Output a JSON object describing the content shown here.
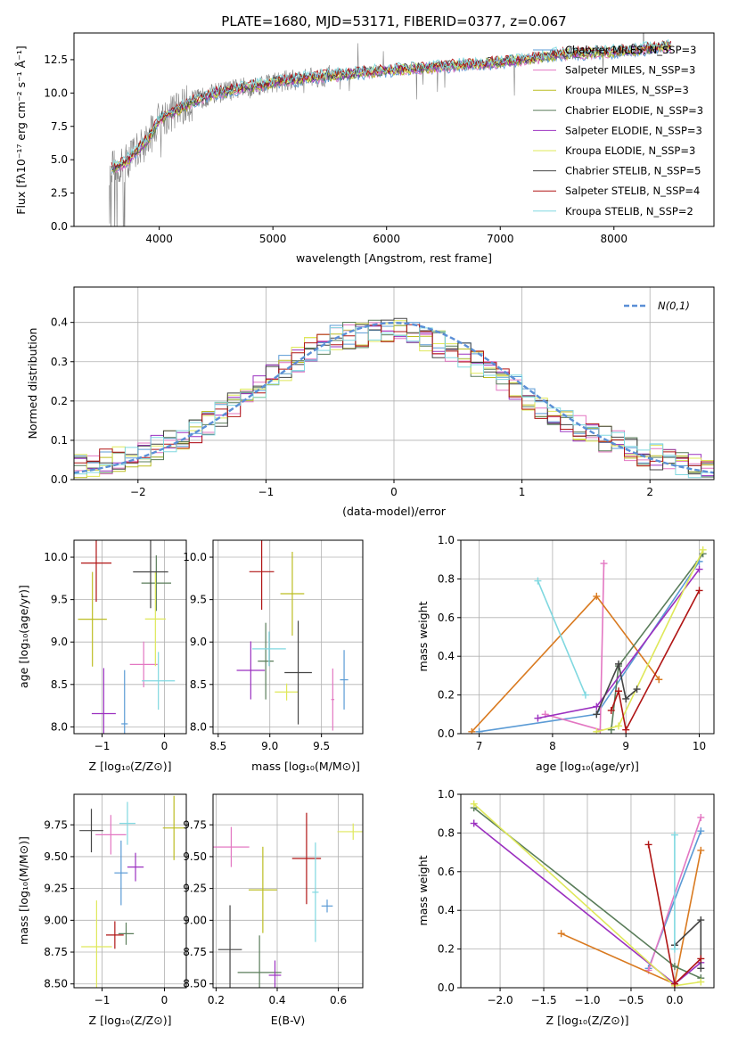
{
  "chart_data": [
    {
      "type": "line",
      "id": "spectrum",
      "title": "PLATE=1680, MJD=53171, FIBERID=0377, z=0.067",
      "xlabel": "wavelength [Angstrom, rest frame]",
      "ylabel": "Flux [fλ10⁻¹⁷ erg cm⁻² s⁻¹ Å⁻¹]",
      "xlim": [
        3250,
        8880
      ],
      "ylim": [
        0,
        14.5
      ],
      "xticks": [
        "4000",
        "5000",
        "6000",
        "7000",
        "8000"
      ],
      "yticks": [
        "0.0",
        "2.5",
        "5.0",
        "7.5",
        "10.0",
        "12.5"
      ],
      "observed_color": "#808080",
      "legend": [
        {
          "label": "Chabrier MILES, N_SSP=3",
          "color": "#5b9bd5"
        },
        {
          "label": "Salpeter MILES, N_SSP=3",
          "color": "#e377c2"
        },
        {
          "label": "Kroupa MILES, N_SSP=3",
          "color": "#bcbd22"
        },
        {
          "label": "Chabrier ELODIE, N_SSP=3",
          "color": "#5a7d5a"
        },
        {
          "label": "Salpeter ELODIE, N_SSP=3",
          "color": "#9b30c0"
        },
        {
          "label": "Kroupa ELODIE, N_SSP=3",
          "color": "#dfe85a"
        },
        {
          "label": "Chabrier STELIB, N_SSP=5",
          "color": "#444444"
        },
        {
          "label": "Salpeter STELIB, N_SSP=4",
          "color": "#b01515"
        },
        {
          "label": "Kroupa STELIB, N_SSP=2",
          "color": "#80d8e0"
        }
      ],
      "continuum": {
        "x": [
          3580,
          3700,
          3900,
          4000,
          4300,
          4500,
          5000,
          5500,
          6000,
          6500,
          7000,
          7300,
          7500,
          8000,
          8500
        ],
        "y": [
          4.3,
          4.8,
          6.5,
          8.0,
          9.4,
          10.0,
          10.8,
          11.3,
          11.7,
          12.0,
          12.3,
          12.6,
          12.9,
          13.1,
          13.5
        ]
      }
    },
    {
      "type": "line",
      "id": "residuals",
      "xlabel": "(data-model)/error",
      "ylabel": "Normed distribution",
      "xlim": [
        -2.5,
        2.5
      ],
      "ylim": [
        0,
        0.49
      ],
      "xticks": [
        "−2",
        "−1",
        "0",
        "1",
        "2"
      ],
      "yticks": [
        "0.0",
        "0.1",
        "0.2",
        "0.3",
        "0.4"
      ],
      "legend_label": "N(0,1)",
      "gaussian_color": "#5b8fd6",
      "bin_width": 0.1,
      "envelope": {
        "x": [
          -2.5,
          -2.0,
          -1.5,
          -1.0,
          -0.5,
          0.0,
          0.5,
          1.0,
          1.5,
          2.0,
          2.5
        ],
        "y": [
          0.03,
          0.06,
          0.13,
          0.25,
          0.36,
          0.38,
          0.33,
          0.22,
          0.12,
          0.06,
          0.025
        ]
      }
    },
    {
      "type": "scatter",
      "id": "age-vs-Z",
      "xlabel": "Z [log₁₀(Z/Z⊙)]",
      "ylabel": "age  [log₁₀(age/yr)]",
      "xlim": [
        -1.45,
        0.35
      ],
      "ylim": [
        7.92,
        10.2
      ],
      "xticks": [
        "−1",
        "0"
      ],
      "yticks": [
        "8.0",
        "8.5",
        "9.0",
        "9.5",
        "10.0"
      ]
    },
    {
      "type": "scatter",
      "id": "age-vs-mass",
      "xlabel": "mass [log₁₀(M/M⊙)]",
      "xlim": [
        8.45,
        9.9
      ],
      "ylim": [
        7.92,
        10.2
      ],
      "xticks": [
        "8.5",
        "9.0",
        "9.5"
      ],
      "yticks": [
        "8.0",
        "8.5",
        "9.0",
        "9.5",
        "10.0"
      ]
    },
    {
      "type": "line",
      "id": "weight-vs-age",
      "xlabel": "age  [log₁₀(age/yr)]",
      "ylabel": "mass weight",
      "xlim": [
        6.75,
        10.2
      ],
      "ylim": [
        0,
        1.0
      ],
      "xticks": [
        "7",
        "8",
        "9",
        "10"
      ],
      "yticks": [
        "0.0",
        "0.2",
        "0.4",
        "0.6",
        "0.8",
        "1.0"
      ],
      "series": [
        {
          "color": "#5b9bd5",
          "x": [
            7.0,
            8.6,
            10.0
          ],
          "y": [
            0.01,
            0.1,
            0.89
          ]
        },
        {
          "color": "#e377c2",
          "x": [
            7.9,
            8.65,
            8.7
          ],
          "y": [
            0.1,
            0.02,
            0.88
          ]
        },
        {
          "color": "#d97a20",
          "x": [
            6.9,
            8.6,
            9.45
          ],
          "y": [
            0.01,
            0.71,
            0.28
          ]
        },
        {
          "color": "#5a7d5a",
          "x": [
            8.8,
            8.9,
            10.05
          ],
          "y": [
            0.02,
            0.35,
            0.93
          ]
        },
        {
          "color": "#9b30c0",
          "x": [
            7.8,
            8.6,
            10.0
          ],
          "y": [
            0.08,
            0.14,
            0.85
          ]
        },
        {
          "color": "#dfe85a",
          "x": [
            8.6,
            8.9,
            10.05
          ],
          "y": [
            0.01,
            0.04,
            0.95
          ]
        },
        {
          "color": "#444444",
          "x": [
            8.6,
            8.9,
            9.0,
            9.15
          ],
          "y": [
            0.1,
            0.36,
            0.18,
            0.23
          ]
        },
        {
          "color": "#b01515",
          "x": [
            8.8,
            8.9,
            9.0,
            10.0
          ],
          "y": [
            0.12,
            0.22,
            0.02,
            0.74
          ]
        },
        {
          "color": "#80d8e0",
          "x": [
            7.8,
            8.45
          ],
          "y": [
            0.79,
            0.2
          ]
        }
      ]
    },
    {
      "type": "scatter",
      "id": "mass-vs-Z",
      "xlabel": "Z [log₁₀(Z/Z⊙)]",
      "ylabel": "mass [log₁₀(M/M⊙)]",
      "xlim": [
        -1.45,
        0.35
      ],
      "ylim": [
        8.47,
        9.99
      ],
      "xticks": [
        "−1",
        "0"
      ],
      "yticks": [
        "8.50",
        "8.75",
        "9.00",
        "9.25",
        "9.50",
        "9.75"
      ]
    },
    {
      "type": "scatter",
      "id": "mass-vs-EBV",
      "xlabel": "E(B-V)",
      "xlim": [
        0.19,
        0.68
      ],
      "ylim": [
        8.47,
        9.99
      ],
      "xticks": [
        "0.2",
        "0.4",
        "0.6"
      ],
      "yticks": [
        "8.50",
        "8.75",
        "9.00",
        "9.25",
        "9.50",
        "9.75"
      ]
    },
    {
      "type": "line",
      "id": "weight-vs-Z",
      "xlabel": "Z [log₁₀(Z/Z⊙)]",
      "ylabel": "mass weight",
      "xlim": [
        -2.45,
        0.45
      ],
      "ylim": [
        0,
        1.0
      ],
      "xticks": [
        "−2.0",
        "−1.5",
        "−1.0",
        "−0.5",
        "0.0"
      ],
      "yticks": [
        "0.0",
        "0.2",
        "0.4",
        "0.6",
        "0.8",
        "1.0"
      ],
      "series": [
        {
          "color": "#5b9bd5",
          "x": [
            -0.3,
            0.3
          ],
          "y": [
            0.1,
            0.81
          ]
        },
        {
          "color": "#e377c2",
          "x": [
            -0.3,
            0.3
          ],
          "y": [
            0.09,
            0.88
          ]
        },
        {
          "color": "#d97a20",
          "x": [
            -1.3,
            0.0,
            0.3
          ],
          "y": [
            0.28,
            0.02,
            0.71
          ]
        },
        {
          "color": "#5a7d5a",
          "x": [
            -2.3,
            0.0,
            0.3
          ],
          "y": [
            0.93,
            0.11,
            0.05
          ]
        },
        {
          "color": "#9b30c0",
          "x": [
            -2.3,
            0.0,
            0.3
          ],
          "y": [
            0.85,
            0.02,
            0.13
          ]
        },
        {
          "color": "#dfe85a",
          "x": [
            -2.3,
            0.0,
            0.3
          ],
          "y": [
            0.95,
            0.01,
            0.03
          ]
        },
        {
          "color": "#444444",
          "x": [
            0.0,
            0.3,
            0.3
          ],
          "y": [
            0.22,
            0.35,
            0.1
          ]
        },
        {
          "color": "#b01515",
          "x": [
            -0.3,
            0.0,
            0.3
          ],
          "y": [
            0.74,
            0.02,
            0.15
          ]
        },
        {
          "color": "#80d8e0",
          "x": [
            0.0,
            0.0
          ],
          "y": [
            0.79,
            0.2
          ]
        }
      ]
    }
  ]
}
